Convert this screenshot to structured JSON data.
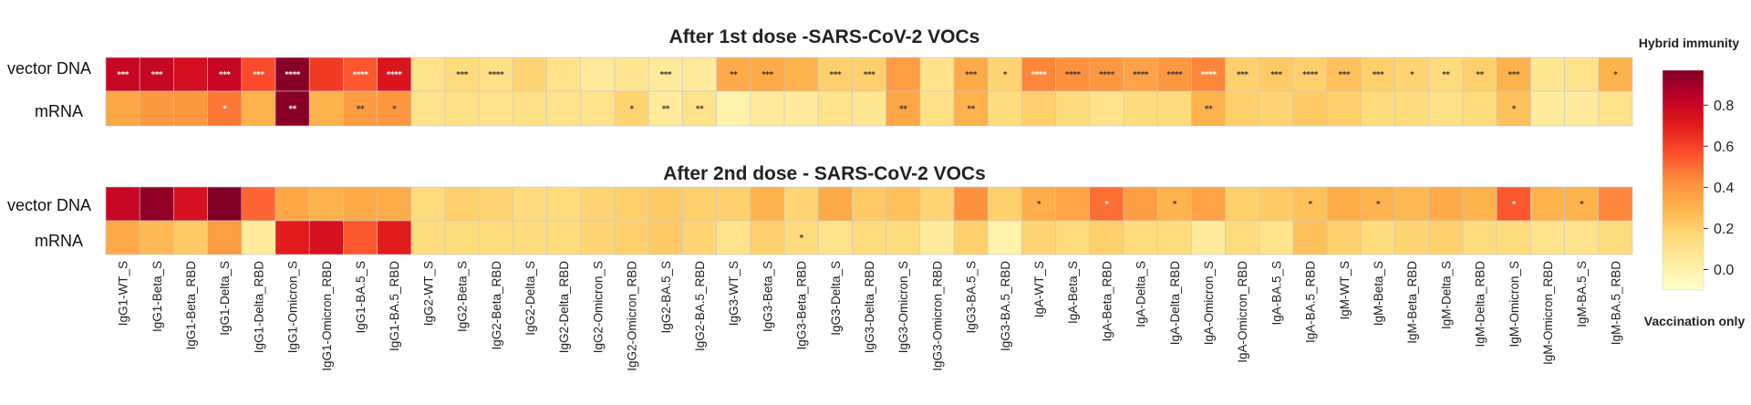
{
  "chart_data": {
    "type": "heatmap",
    "columns": [
      "IgG1-WT_S",
      "IgG1-Beta_S",
      "IgG1-Beta_RBD",
      "IgG1-Delta_S",
      "IgG1-Delta_RBD",
      "IgG1-Omicron_S",
      "IgG1-Omicron_RBD",
      "IgG1-BA.5_S",
      "IgG1-BA.5_RBD",
      "IgG2-WT_S",
      "IgG2-Beta_S",
      "IgG2-Beta_RBD",
      "IgG2-Delta_S",
      "IgG2-Delta_RBD",
      "IgG2-Omicron_S",
      "IgG2-Omicron_RBD",
      "IgG2-BA.5_S",
      "IgG2-BA.5_RBD",
      "IgG3-WT_S",
      "IgG3-Beta_S",
      "IgG3-Beta_RBD",
      "IgG3-Delta_S",
      "IgG3-Delta_RBD",
      "IgG3-Omicron_S",
      "IgG3-Omicron_RBD",
      "IgG3-BA.5_S",
      "IgG3-BA.5_RBD",
      "IgA-WT_S",
      "IgA-Beta_S",
      "IgA-Beta_RBD",
      "IgA-Delta_S",
      "IgA-Delta_RBD",
      "IgA-Omicron_S",
      "IgA-Omicron_RBD",
      "IgA-BA.5_S",
      "IgA-BA.5_RBD",
      "IgM-WT_S",
      "IgM-Beta_S",
      "IgM-Beta_RBD",
      "IgM-Delta_S",
      "IgM-Delta_RBD",
      "IgM-Omicron_S",
      "IgM-Omicron_RBD",
      "IgM-BA.5_S",
      "IgM-BA.5_RBD"
    ],
    "colorbar": {
      "title_top": "Hybrid immunity",
      "title_bottom": "Vaccination only",
      "vmin": -0.1,
      "vmax": 0.97,
      "ticks": [
        0.0,
        0.2,
        0.4,
        0.6,
        0.8
      ],
      "tick_labels": [
        "0.0",
        "0.2",
        "0.4",
        "0.6",
        "0.8"
      ]
    },
    "panels": [
      {
        "title": "After 1st dose -SARS-CoV-2 VOCs",
        "rows": [
          {
            "label": "vector DNA",
            "values": [
              0.8,
              0.8,
              0.76,
              0.8,
              0.58,
              0.95,
              0.62,
              0.55,
              0.73,
              0.1,
              0.15,
              0.12,
              0.18,
              0.1,
              0.05,
              0.08,
              0.05,
              0.05,
              0.33,
              0.33,
              0.3,
              0.2,
              0.2,
              0.38,
              0.1,
              0.33,
              0.18,
              0.45,
              0.42,
              0.4,
              0.36,
              0.4,
              0.45,
              0.2,
              0.22,
              0.2,
              0.25,
              0.2,
              0.18,
              0.15,
              0.2,
              0.3,
              0.08,
              0.1,
              0.3
            ],
            "stars": [
              "***",
              "***",
              "",
              "***",
              "***",
              "****",
              "",
              "****",
              "****",
              "",
              "***",
              "****",
              "",
              "",
              "",
              "",
              "***",
              "",
              "**",
              "***",
              "",
              "***",
              "***",
              "",
              "",
              "***",
              "*",
              "****",
              "****",
              "****",
              "****",
              "****",
              "****",
              "***",
              "***",
              "****",
              "***",
              "***",
              "*",
              "**",
              "**",
              "***",
              "",
              "",
              "*"
            ]
          },
          {
            "label": "mRNA",
            "values": [
              0.35,
              0.4,
              0.4,
              0.48,
              0.3,
              0.95,
              0.3,
              0.38,
              0.4,
              0.1,
              0.12,
              0.1,
              0.12,
              0.1,
              0.1,
              0.18,
              0.05,
              0.1,
              0.0,
              0.05,
              0.05,
              0.1,
              0.08,
              0.35,
              0.12,
              0.3,
              0.15,
              0.2,
              0.15,
              0.1,
              0.15,
              0.15,
              0.3,
              0.2,
              0.18,
              0.22,
              0.2,
              0.15,
              0.15,
              0.12,
              0.15,
              0.25,
              0.05,
              0.05,
              0.1
            ],
            "stars": [
              "",
              "",
              "",
              "*",
              "",
              "**",
              "",
              "**",
              "*",
              "",
              "",
              "",
              "",
              "",
              "",
              "*",
              "**",
              "**",
              "",
              "",
              "",
              "",
              "",
              "**",
              "",
              "**",
              "",
              "",
              "",
              "",
              "",
              "",
              "**",
              "",
              "",
              "",
              "",
              "",
              "",
              "",
              "",
              "*",
              "",
              "",
              ""
            ]
          }
        ]
      },
      {
        "title": "After 2nd dose - SARS-CoV-2 VOCs",
        "rows": [
          {
            "label": "vector DNA",
            "values": [
              0.8,
              0.93,
              0.75,
              0.97,
              0.52,
              0.35,
              0.3,
              0.33,
              0.32,
              0.15,
              0.2,
              0.18,
              0.15,
              0.15,
              0.18,
              0.2,
              0.22,
              0.2,
              0.2,
              0.3,
              0.18,
              0.33,
              0.22,
              0.25,
              0.18,
              0.42,
              0.2,
              0.32,
              0.36,
              0.5,
              0.38,
              0.3,
              0.36,
              0.2,
              0.22,
              0.25,
              0.32,
              0.3,
              0.28,
              0.33,
              0.3,
              0.55,
              0.3,
              0.3,
              0.45
            ],
            "stars": [
              "",
              "",
              "",
              "",
              "",
              "",
              "",
              "",
              "",
              "",
              "",
              "",
              "",
              "",
              "",
              "",
              "",
              "",
              "",
              "",
              "",
              "",
              "",
              "",
              "",
              "",
              "",
              "*",
              "",
              "*",
              "",
              "*",
              "",
              "",
              "",
              "*",
              "",
              "*",
              "",
              "",
              "",
              "*",
              "",
              "*",
              ""
            ]
          },
          {
            "label": "mRNA",
            "values": [
              0.33,
              0.28,
              0.22,
              0.38,
              0.05,
              0.7,
              0.75,
              0.55,
              0.7,
              0.15,
              0.15,
              0.15,
              0.15,
              0.15,
              0.18,
              0.2,
              0.22,
              0.18,
              0.1,
              0.2,
              0.15,
              0.1,
              0.15,
              0.15,
              0.05,
              0.2,
              0.0,
              0.18,
              0.15,
              0.2,
              0.15,
              0.15,
              0.05,
              0.15,
              0.1,
              0.25,
              0.2,
              0.15,
              0.18,
              0.2,
              0.15,
              0.15,
              0.1,
              0.1,
              0.15
            ],
            "stars": [
              "",
              "",
              "",
              "",
              "",
              "",
              "",
              "",
              "",
              "",
              "",
              "",
              "",
              "",
              "",
              "",
              "",
              "",
              "",
              "",
              "*",
              "",
              "",
              "",
              "",
              "",
              "",
              "",
              "",
              "",
              "",
              "",
              "",
              "",
              "",
              "",
              "",
              "",
              "",
              "",
              "",
              "",
              "",
              "",
              ""
            ]
          }
        ]
      }
    ]
  }
}
